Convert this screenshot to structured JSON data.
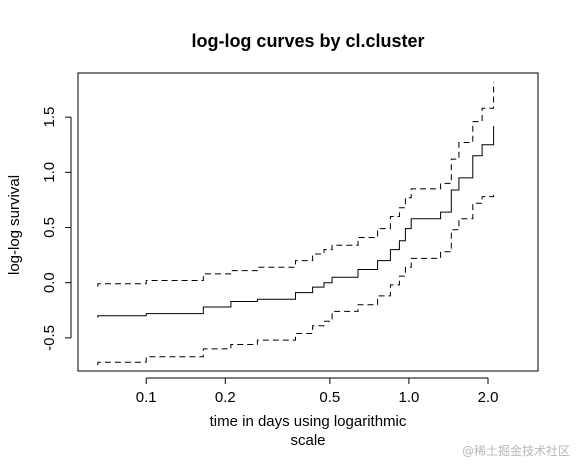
{
  "chart_data": {
    "type": "line",
    "title": "log-log curves by cl.cluster",
    "xlabel_lines": [
      "time in days using logarithmic",
      "scale"
    ],
    "ylabel": "log-log survival",
    "x_scale": "log",
    "xlim": [
      0.055,
      3.1
    ],
    "ylim": [
      -0.8,
      1.9
    ],
    "x_ticks": [
      0.1,
      0.2,
      0.5,
      1.0,
      2.0
    ],
    "x_tick_labels": [
      "0.1",
      "0.2",
      "0.5",
      "1.0",
      "2.0"
    ],
    "y_ticks": [
      -0.5,
      0.0,
      0.5,
      1.0,
      1.5
    ],
    "y_tick_labels": [
      "-0.5",
      "0.0",
      "0.5",
      "1.0",
      "1.5"
    ],
    "grid": false,
    "series": [
      {
        "style": "solid",
        "points": [
          [
            0.065,
            -0.31
          ],
          [
            0.0655,
            -0.3
          ],
          [
            0.1,
            -0.28
          ],
          [
            0.165,
            -0.22
          ],
          [
            0.21,
            -0.17
          ],
          [
            0.265,
            -0.15
          ],
          [
            0.37,
            -0.09
          ],
          [
            0.43,
            -0.04
          ],
          [
            0.475,
            0.0
          ],
          [
            0.51,
            0.05
          ],
          [
            0.64,
            0.12
          ],
          [
            0.76,
            0.2
          ],
          [
            0.85,
            0.3
          ],
          [
            0.92,
            0.38
          ],
          [
            0.97,
            0.49
          ],
          [
            1.02,
            0.58
          ],
          [
            1.32,
            0.64
          ],
          [
            1.45,
            0.84
          ],
          [
            1.55,
            0.95
          ],
          [
            1.75,
            1.15
          ],
          [
            1.9,
            1.25
          ],
          [
            2.1,
            1.42
          ]
        ]
      },
      {
        "style": "dashed",
        "points": [
          [
            0.065,
            -0.03
          ],
          [
            0.0655,
            -0.01
          ],
          [
            0.1,
            0.02
          ],
          [
            0.165,
            0.08
          ],
          [
            0.21,
            0.11
          ],
          [
            0.265,
            0.14
          ],
          [
            0.37,
            0.2
          ],
          [
            0.43,
            0.26
          ],
          [
            0.475,
            0.3
          ],
          [
            0.51,
            0.34
          ],
          [
            0.64,
            0.41
          ],
          [
            0.76,
            0.49
          ],
          [
            0.85,
            0.6
          ],
          [
            0.92,
            0.68
          ],
          [
            0.97,
            0.77
          ],
          [
            1.02,
            0.85
          ],
          [
            1.32,
            0.9
          ],
          [
            1.45,
            1.12
          ],
          [
            1.55,
            1.27
          ],
          [
            1.75,
            1.46
          ],
          [
            1.9,
            1.58
          ],
          [
            2.1,
            1.82
          ]
        ]
      },
      {
        "style": "dashed",
        "points": [
          [
            0.065,
            -0.74
          ],
          [
            0.0655,
            -0.72
          ],
          [
            0.1,
            -0.67
          ],
          [
            0.165,
            -0.6
          ],
          [
            0.21,
            -0.56
          ],
          [
            0.265,
            -0.52
          ],
          [
            0.37,
            -0.46
          ],
          [
            0.43,
            -0.39
          ],
          [
            0.475,
            -0.35
          ],
          [
            0.51,
            -0.26
          ],
          [
            0.64,
            -0.2
          ],
          [
            0.76,
            -0.12
          ],
          [
            0.85,
            -0.02
          ],
          [
            0.92,
            0.06
          ],
          [
            0.97,
            0.14
          ],
          [
            1.02,
            0.22
          ],
          [
            1.32,
            0.28
          ],
          [
            1.45,
            0.48
          ],
          [
            1.55,
            0.58
          ],
          [
            1.75,
            0.72
          ],
          [
            1.9,
            0.78
          ],
          [
            2.1,
            0.8
          ]
        ]
      }
    ]
  },
  "watermark": "@稀土掘金技术社区"
}
